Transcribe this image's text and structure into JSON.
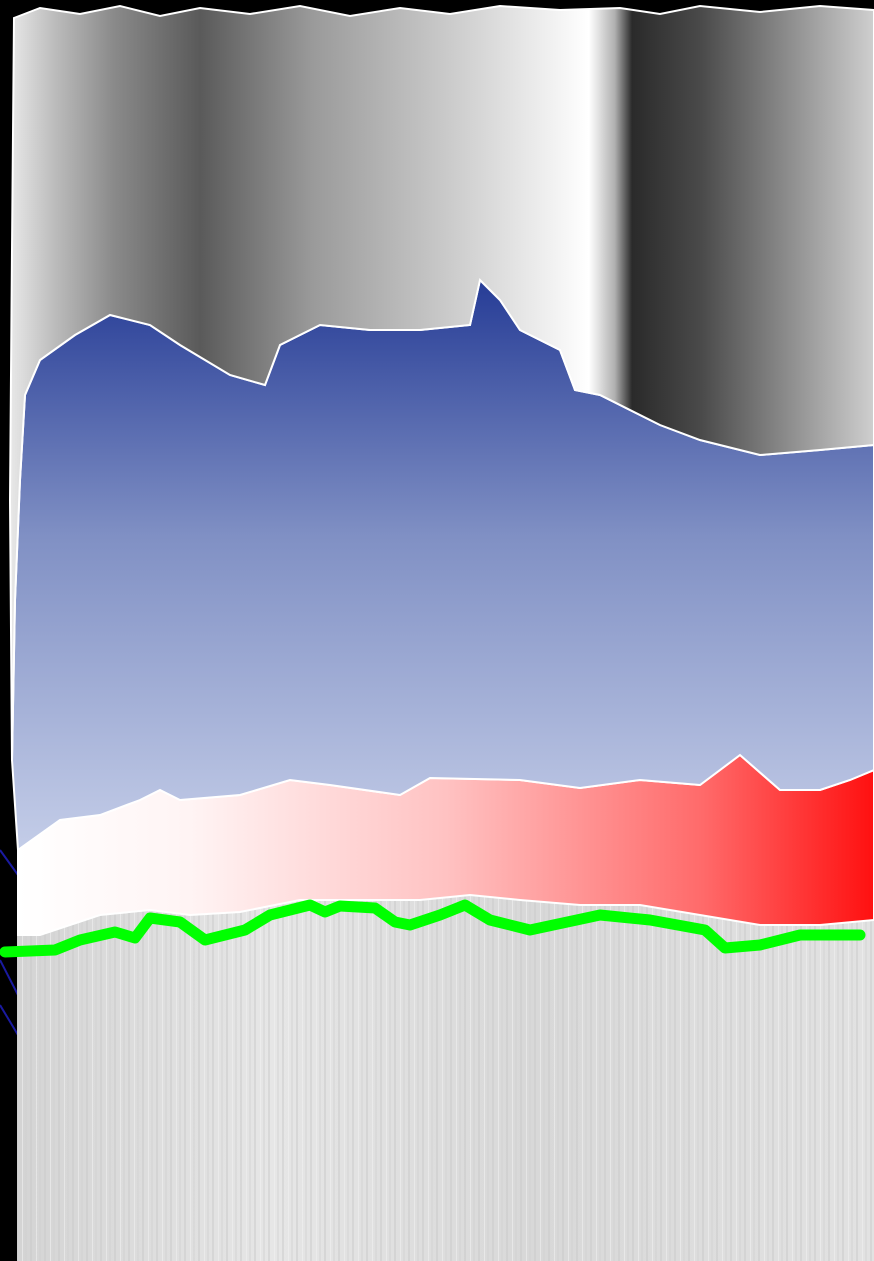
{
  "colors": {
    "background": "#000000",
    "top_layer_dark": "#2a2a2a",
    "top_layer_light": "#ffffff",
    "middle_layer_top": "#263c96",
    "middle_layer_bottom": "#c4cde8",
    "lower_layer_left": "#ffffff",
    "lower_layer_right": "#ff1010",
    "base_layer": "#dedede",
    "boundary_line": "#00ff00",
    "outline": "#ffffff"
  },
  "icons": {
    "boundary_line": "polyline-boundary"
  }
}
